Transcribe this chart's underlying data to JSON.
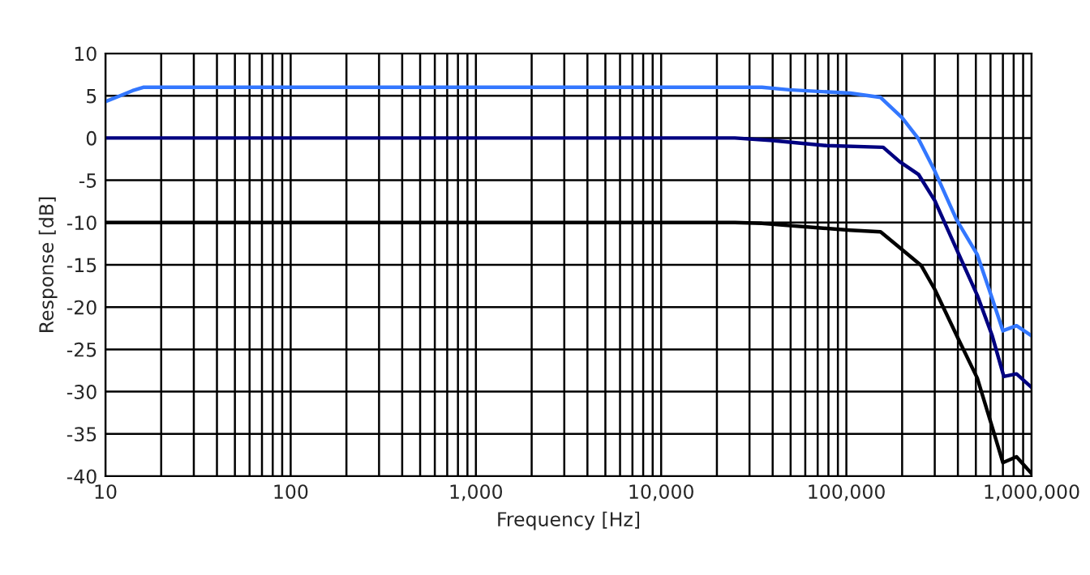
{
  "chart_data": {
    "type": "line",
    "xlabel": "Frequency [Hz]",
    "ylabel": "Response [dB]",
    "log": "x",
    "grid": true,
    "marker": "none",
    "line_style": "solid",
    "xlim": [
      10,
      1000000
    ],
    "xticks": [
      10,
      100,
      {
        "value": 1000,
        "label": "1,000"
      },
      {
        "value": 10000,
        "label": "10,000"
      },
      {
        "value": 100000,
        "label": "100,000"
      },
      {
        "value": 1000000,
        "label": "1,000,000"
      }
    ],
    "ylim": [
      -40,
      10
    ],
    "yticks": [
      -40,
      -35,
      -30,
      -25,
      -20,
      -15,
      -10,
      -5,
      0,
      5,
      10
    ],
    "series": [
      {
        "color": "#3377ff",
        "x": [
          10,
          12,
          14,
          16,
          12600,
          35000,
          49000,
          105000,
          153000,
          200000,
          245000,
          300000,
          394000,
          509000,
          611000,
          700000,
          829000,
          1000000
        ],
        "values": [
          4.3,
          5.0,
          5.6,
          6.0,
          6.0,
          6.0,
          5.7,
          5.3,
          4.8,
          2.4,
          -0.1,
          -3.9,
          -9.7,
          -13.8,
          -18.9,
          -22.8,
          -22.2,
          -23.4
        ]
      },
      {
        "color": "#000080",
        "x": [
          10,
          25000,
          40000,
          78000,
          158000,
          194000,
          245000,
          300000,
          394000,
          509000,
          611000,
          708000,
          829000,
          1000000
        ],
        "values": [
          0,
          0,
          -0.3,
          -0.9,
          -1.1,
          -2.8,
          -4.3,
          -7.4,
          -13.2,
          -18.6,
          -23.3,
          -28.2,
          -27.9,
          -29.5
        ]
      },
      {
        "color": "#000000",
        "x": [
          10,
          25000,
          35000,
          68000,
          105000,
          153000,
          200000,
          254000,
          300000,
          407000,
          509000,
          611000,
          700000,
          829000,
          1000000
        ],
        "values": [
          -10,
          -10,
          -10.1,
          -10.6,
          -10.9,
          -11.1,
          -13.2,
          -15.1,
          -17.9,
          -24.0,
          -28.4,
          -34.1,
          -38.4,
          -37.7,
          -39.7
        ]
      }
    ]
  }
}
